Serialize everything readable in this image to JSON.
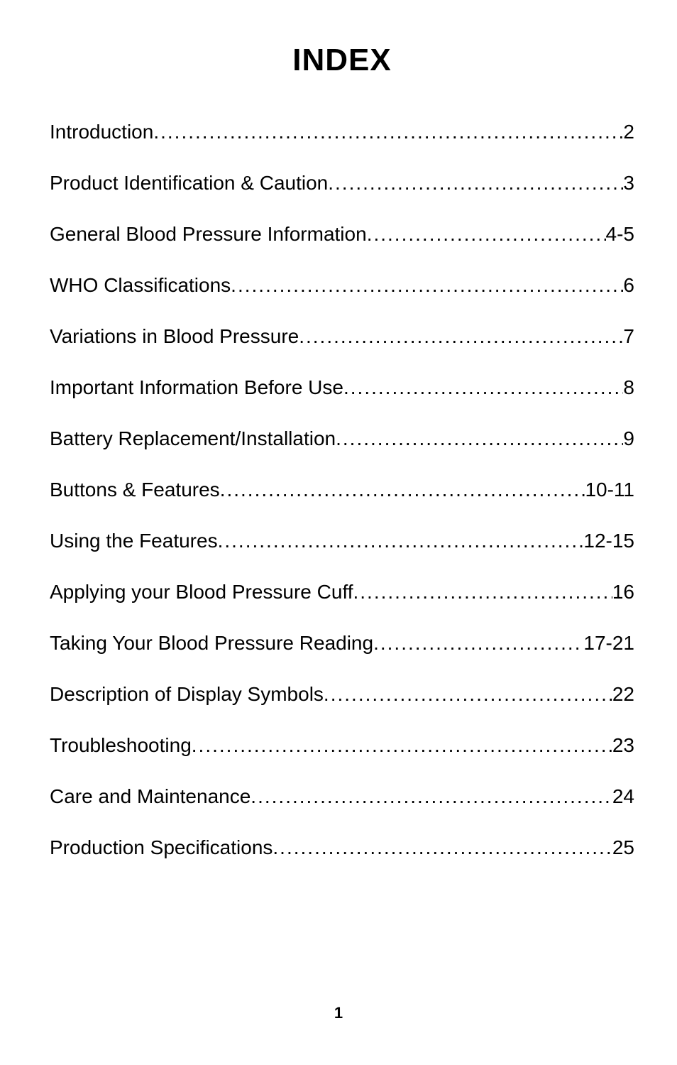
{
  "title": "INDEX",
  "title_fontsize": 44,
  "title_color": "#000000",
  "entry_fontsize": 28,
  "entry_color": "#000000",
  "entry_line_height": 72,
  "page_number": "1",
  "page_number_fontsize": 22,
  "background_color": "#ffffff",
  "entries": [
    {
      "label": "Introduction",
      "page": "2"
    },
    {
      "label": "Product Identification & Caution",
      "page": "3"
    },
    {
      "label": "General Blood Pressure Information",
      "page": "4-5"
    },
    {
      "label": "WHO Classifications",
      "page": "6"
    },
    {
      "label": "Variations in Blood Pressure ",
      "page": " 7"
    },
    {
      "label": "Important Information Before Use",
      "page": "8"
    },
    {
      "label": "Battery Replacement/Installation",
      "page": "9"
    },
    {
      "label": "Buttons & Features",
      "page": " 10-11"
    },
    {
      "label": "Using the Features",
      "page": "12-15"
    },
    {
      "label": "Applying your Blood Pressure Cuff",
      "page": "16"
    },
    {
      "label": "Taking Your Blood Pressure Reading",
      "page": "17-21"
    },
    {
      "label": "Description of Display Symbols",
      "page": "22"
    },
    {
      "label": "Troubleshooting",
      "page": " 23"
    },
    {
      "label": "Care and Maintenance",
      "page": " 24"
    },
    {
      "label": "Production Specifications",
      "page": "25"
    }
  ]
}
